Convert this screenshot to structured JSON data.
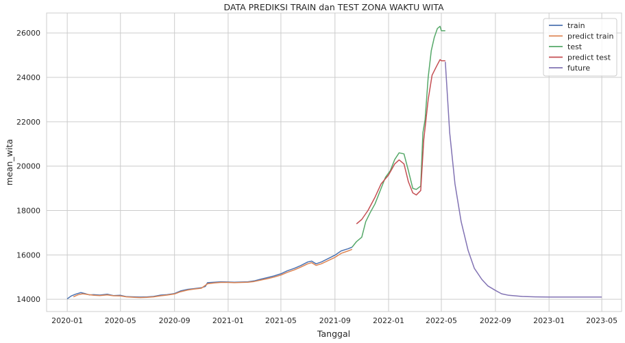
{
  "chart_data": {
    "type": "line",
    "title": "DATA PREDIKSI TRAIN dan TEST ZONA WAKTU WITA",
    "xlabel": "Tanggal",
    "ylabel": "mean_wita",
    "xlim": [
      "2019-11-15",
      "2023-06-15"
    ],
    "ylim": [
      13450,
      26900
    ],
    "grid": true,
    "legend_position": "top-right",
    "x_ticks": [
      "2020-01",
      "2020-05",
      "2020-09",
      "2021-01",
      "2021-05",
      "2021-09",
      "2022-01",
      "2022-05",
      "2022-09",
      "2023-01",
      "2023-05"
    ],
    "y_ticks": [
      14000,
      16000,
      18000,
      20000,
      22000,
      24000,
      26000
    ],
    "series": [
      {
        "name": "train",
        "color": "#4c72b0",
        "points": [
          [
            "2020-01-01",
            14020
          ],
          [
            "2020-01-10",
            14150
          ],
          [
            "2020-01-20",
            14230
          ],
          [
            "2020-02-01",
            14300
          ],
          [
            "2020-02-10",
            14260
          ],
          [
            "2020-02-20",
            14200
          ],
          [
            "2020-03-01",
            14210
          ],
          [
            "2020-03-15",
            14190
          ],
          [
            "2020-04-01",
            14230
          ],
          [
            "2020-04-15",
            14170
          ],
          [
            "2020-05-01",
            14180
          ],
          [
            "2020-05-15",
            14120
          ],
          [
            "2020-06-01",
            14110
          ],
          [
            "2020-06-15",
            14100
          ],
          [
            "2020-07-01",
            14110
          ],
          [
            "2020-07-15",
            14130
          ],
          [
            "2020-08-01",
            14190
          ],
          [
            "2020-08-15",
            14210
          ],
          [
            "2020-09-01",
            14260
          ],
          [
            "2020-09-15",
            14380
          ],
          [
            "2020-10-01",
            14450
          ],
          [
            "2020-10-15",
            14480
          ],
          [
            "2020-11-01",
            14520
          ],
          [
            "2020-11-10",
            14580
          ],
          [
            "2020-11-15",
            14750
          ],
          [
            "2020-12-01",
            14770
          ],
          [
            "2020-12-15",
            14790
          ],
          [
            "2021-01-01",
            14780
          ],
          [
            "2021-01-15",
            14770
          ],
          [
            "2021-02-01",
            14780
          ],
          [
            "2021-02-15",
            14790
          ],
          [
            "2021-03-01",
            14830
          ],
          [
            "2021-03-15",
            14900
          ],
          [
            "2021-04-01",
            14980
          ],
          [
            "2021-04-15",
            15050
          ],
          [
            "2021-05-01",
            15150
          ],
          [
            "2021-05-15",
            15280
          ],
          [
            "2021-06-01",
            15400
          ],
          [
            "2021-06-15",
            15520
          ],
          [
            "2021-07-01",
            15680
          ],
          [
            "2021-07-10",
            15720
          ],
          [
            "2021-07-20",
            15600
          ],
          [
            "2021-08-01",
            15680
          ],
          [
            "2021-08-15",
            15820
          ],
          [
            "2021-09-01",
            15990
          ],
          [
            "2021-09-15",
            16180
          ],
          [
            "2021-10-01",
            16280
          ],
          [
            "2021-10-10",
            16350
          ]
        ]
      },
      {
        "name": "predict train",
        "color": "#dd8452",
        "points": [
          [
            "2020-01-15",
            14110
          ],
          [
            "2020-01-25",
            14200
          ],
          [
            "2020-02-05",
            14250
          ],
          [
            "2020-02-15",
            14220
          ],
          [
            "2020-03-01",
            14180
          ],
          [
            "2020-03-15",
            14170
          ],
          [
            "2020-04-01",
            14200
          ],
          [
            "2020-04-15",
            14160
          ],
          [
            "2020-05-01",
            14150
          ],
          [
            "2020-05-15",
            14110
          ],
          [
            "2020-06-01",
            14090
          ],
          [
            "2020-06-15",
            14080
          ],
          [
            "2020-07-01",
            14090
          ],
          [
            "2020-07-15",
            14110
          ],
          [
            "2020-08-01",
            14160
          ],
          [
            "2020-08-15",
            14190
          ],
          [
            "2020-09-01",
            14240
          ],
          [
            "2020-09-15",
            14340
          ],
          [
            "2020-10-01",
            14420
          ],
          [
            "2020-10-15",
            14460
          ],
          [
            "2020-11-01",
            14500
          ],
          [
            "2020-11-15",
            14700
          ],
          [
            "2020-12-01",
            14740
          ],
          [
            "2020-12-15",
            14760
          ],
          [
            "2021-01-01",
            14760
          ],
          [
            "2021-01-15",
            14750
          ],
          [
            "2021-02-01",
            14760
          ],
          [
            "2021-02-15",
            14770
          ],
          [
            "2021-03-01",
            14800
          ],
          [
            "2021-03-15",
            14860
          ],
          [
            "2021-04-01",
            14930
          ],
          [
            "2021-04-15",
            15000
          ],
          [
            "2021-05-01",
            15090
          ],
          [
            "2021-05-15",
            15210
          ],
          [
            "2021-06-01",
            15330
          ],
          [
            "2021-06-15",
            15450
          ],
          [
            "2021-07-01",
            15600
          ],
          [
            "2021-07-10",
            15650
          ],
          [
            "2021-07-20",
            15530
          ],
          [
            "2021-08-01",
            15600
          ],
          [
            "2021-08-15",
            15730
          ],
          [
            "2021-09-01",
            15890
          ],
          [
            "2021-09-15",
            16070
          ],
          [
            "2021-10-01",
            16180
          ],
          [
            "2021-10-10",
            16250
          ]
        ]
      },
      {
        "name": "test",
        "color": "#55a868",
        "points": [
          [
            "2021-10-10",
            16350
          ],
          [
            "2021-10-20",
            16600
          ],
          [
            "2021-11-01",
            16800
          ],
          [
            "2021-11-10",
            17500
          ],
          [
            "2021-11-20",
            17900
          ],
          [
            "2021-12-01",
            18300
          ],
          [
            "2021-12-15",
            19000
          ],
          [
            "2021-12-25",
            19500
          ],
          [
            "2022-01-05",
            19800
          ],
          [
            "2022-01-15",
            20300
          ],
          [
            "2022-01-25",
            20600
          ],
          [
            "2022-02-05",
            20550
          ],
          [
            "2022-02-15",
            19800
          ],
          [
            "2022-02-25",
            19000
          ],
          [
            "2022-03-05",
            18950
          ],
          [
            "2022-03-15",
            19100
          ],
          [
            "2022-03-20",
            21500
          ],
          [
            "2022-03-25",
            22100
          ],
          [
            "2022-04-01",
            24000
          ],
          [
            "2022-04-08",
            25200
          ],
          [
            "2022-04-15",
            25800
          ],
          [
            "2022-04-22",
            26200
          ],
          [
            "2022-04-28",
            26300
          ],
          [
            "2022-05-01",
            26100
          ],
          [
            "2022-05-10",
            26100
          ]
        ]
      },
      {
        "name": "predict test",
        "color": "#c44e52",
        "points": [
          [
            "2021-10-20",
            17400
          ],
          [
            "2021-11-01",
            17600
          ],
          [
            "2021-11-15",
            18000
          ],
          [
            "2021-12-01",
            18600
          ],
          [
            "2021-12-15",
            19200
          ],
          [
            "2022-01-01",
            19600
          ],
          [
            "2022-01-15",
            20100
          ],
          [
            "2022-01-25",
            20280
          ],
          [
            "2022-02-05",
            20100
          ],
          [
            "2022-02-15",
            19300
          ],
          [
            "2022-02-25",
            18800
          ],
          [
            "2022-03-05",
            18700
          ],
          [
            "2022-03-15",
            18900
          ],
          [
            "2022-03-22",
            21200
          ],
          [
            "2022-04-01",
            23000
          ],
          [
            "2022-04-10",
            24100
          ],
          [
            "2022-04-20",
            24500
          ],
          [
            "2022-04-28",
            24800
          ],
          [
            "2022-05-01",
            24750
          ],
          [
            "2022-05-10",
            24750
          ]
        ]
      },
      {
        "name": "future",
        "color": "#8172b3",
        "points": [
          [
            "2022-05-10",
            24700
          ],
          [
            "2022-05-20",
            21500
          ],
          [
            "2022-06-01",
            19200
          ],
          [
            "2022-06-15",
            17500
          ],
          [
            "2022-07-01",
            16200
          ],
          [
            "2022-07-15",
            15400
          ],
          [
            "2022-08-01",
            14900
          ],
          [
            "2022-08-15",
            14600
          ],
          [
            "2022-09-01",
            14400
          ],
          [
            "2022-09-15",
            14250
          ],
          [
            "2022-10-01",
            14180
          ],
          [
            "2022-11-01",
            14130
          ],
          [
            "2022-12-01",
            14110
          ],
          [
            "2023-01-01",
            14100
          ],
          [
            "2023-03-01",
            14100
          ],
          [
            "2023-05-01",
            14100
          ]
        ]
      }
    ]
  }
}
